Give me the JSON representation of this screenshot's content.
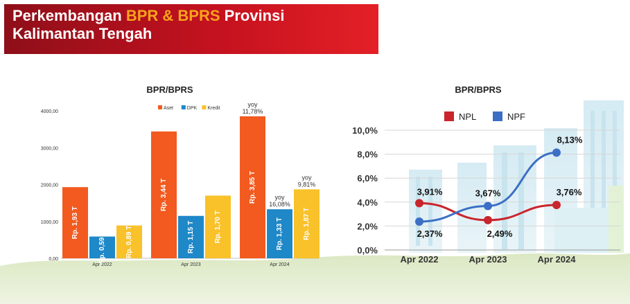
{
  "banner": {
    "title_part1": "Perkembangan ",
    "title_highlight": "BPR & BPRS",
    "title_part2": " Provinsi",
    "title_line2": "Kalimantan Tengah"
  },
  "colors": {
    "banner": "#c3111f",
    "aset": "#f25a1f",
    "dpk": "#1e88c8",
    "kredit": "#f9c12a",
    "npl": "#c9252c",
    "npf": "#3b6fc5"
  },
  "chart_data": [
    {
      "type": "bar",
      "title": "BPR/BPRS",
      "categories": [
        "Apr 2022",
        "Apr 2023",
        "Apr 2024"
      ],
      "ylim": [
        0,
        4000
      ],
      "yticks": [
        "0,00",
        "1000,00",
        "2000,00",
        "3000,00",
        "4000,00"
      ],
      "legend_position": "top-center",
      "series": [
        {
          "name": "Aset",
          "values": [
            1930,
            3440,
            3850
          ],
          "labels": [
            "Rp. 1,93 T",
            "Rp. 3,44 T",
            "Rp. 3,85 T"
          ]
        },
        {
          "name": "DPK",
          "values": [
            590,
            1150,
            1330
          ],
          "labels": [
            "Rp. 0,59 T",
            "Rp. 1,15 T",
            "Rp. 1,33 T"
          ]
        },
        {
          "name": "Kredit",
          "values": [
            890,
            1700,
            1870
          ],
          "labels": [
            "Rp. 0,89 T",
            "Rp. 1,70 T",
            "Rp. 1,87 T"
          ]
        }
      ],
      "annotations": [
        {
          "series": "Aset",
          "category": "Apr 2024",
          "line1": "yoy",
          "line2": "11,78%"
        },
        {
          "series": "DPK",
          "category": "Apr 2024",
          "line1": "yoy",
          "line2": "16,08%"
        },
        {
          "series": "Kredit",
          "category": "Apr 2024",
          "line1": "yoy",
          "line2": "9,81%"
        }
      ]
    },
    {
      "type": "line",
      "title": "BPR/BPRS",
      "categories": [
        "Apr 2022",
        "Apr 2023",
        "Apr 2024"
      ],
      "ylim": [
        0,
        10
      ],
      "yticks": [
        "0,0%",
        "2,0%",
        "4,0%",
        "6,0%",
        "8,0%",
        "10,0%"
      ],
      "legend_position": "top-center",
      "series": [
        {
          "name": "NPL",
          "values": [
            3.91,
            2.49,
            3.76
          ],
          "labels": [
            "3,91%",
            "2,49%",
            "3,76%"
          ]
        },
        {
          "name": "NPF",
          "values": [
            2.37,
            3.67,
            8.13
          ],
          "labels": [
            "2,37%",
            "3,67%",
            "8,13%"
          ]
        }
      ]
    }
  ]
}
